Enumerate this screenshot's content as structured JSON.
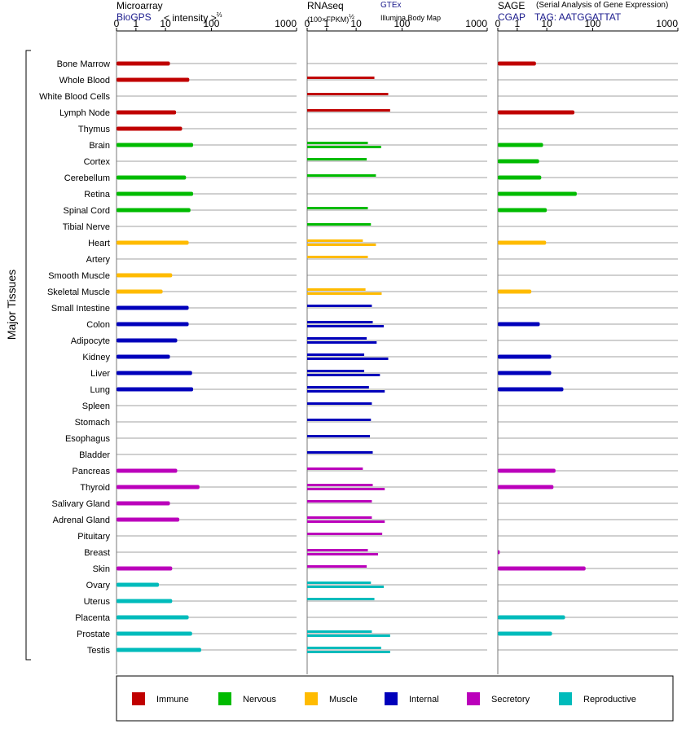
{
  "colors": {
    "Immune": "#c00000",
    "Nervous": "#00bb00",
    "Muscle": "#ffbb00",
    "Internal": "#0000bb",
    "Secretory": "#bb00bb",
    "Reproductive": "#00bbbb",
    "grid": "#999999",
    "axis": "#000000"
  },
  "headers": {
    "microarray": {
      "title": "Microarray",
      "source": "BioGPS",
      "unit_pre": "< intensity >",
      "unit_exp": "⅔"
    },
    "rnaseq": {
      "title": "RNAseq",
      "unit": "(100×FPKM)",
      "unit_exp": "½",
      "source1": "GTEx",
      "source2": "Illumina Body Map"
    },
    "sage": {
      "title": "SAGE",
      "subtitle": "(Serial Analysis of Gene Expression)",
      "source": "CGAP",
      "tag": "TAG: AATGGATTAT"
    }
  },
  "chart_data": {
    "type": "bar",
    "orientation": "horizontal",
    "y_axis_label": "Major Tissues",
    "tick_labels": [
      "0",
      "1",
      "10",
      "100",
      "1000"
    ],
    "xlim": [
      0,
      1000
    ],
    "grid": true,
    "legend_placement": "bottom",
    "legend": [
      "Immune",
      "Nervous",
      "Muscle",
      "Internal",
      "Secretory",
      "Reproductive"
    ],
    "tissues": [
      {
        "name": "Bone Marrow",
        "group": "Immune",
        "microarray": 12.5,
        "rnaseq": [],
        "sage": 4.3
      },
      {
        "name": "Whole Blood",
        "group": "Immune",
        "microarray": 33,
        "rnaseq": [
          25
        ],
        "sage": null
      },
      {
        "name": "White Blood Cells",
        "group": "Immune",
        "microarray": null,
        "rnaseq": [
          50
        ],
        "sage": null
      },
      {
        "name": "Lymph Node",
        "group": "Immune",
        "microarray": 17,
        "rnaseq": [
          55
        ],
        "sage": 40
      },
      {
        "name": "Thymus",
        "group": "Immune",
        "microarray": 23,
        "rnaseq": [],
        "sage": null
      },
      {
        "name": "Brain",
        "group": "Nervous",
        "microarray": 40,
        "rnaseq": [
          18,
          35
        ],
        "sage": 7.5
      },
      {
        "name": "Cortex",
        "group": "Nervous",
        "microarray": null,
        "rnaseq": [
          17
        ],
        "sage": 5.5
      },
      {
        "name": "Cerebellum",
        "group": "Nervous",
        "microarray": 28,
        "rnaseq": [
          27
        ],
        "sage": 6.5
      },
      {
        "name": "Retina",
        "group": "Nervous",
        "microarray": 40,
        "rnaseq": [],
        "sage": 45
      },
      {
        "name": "Spinal Cord",
        "group": "Nervous",
        "microarray": 35,
        "rnaseq": [
          18
        ],
        "sage": 10
      },
      {
        "name": "Tibial Nerve",
        "group": "Nervous",
        "microarray": null,
        "rnaseq": [
          21
        ],
        "sage": null
      },
      {
        "name": "Heart",
        "group": "Muscle",
        "microarray": 32,
        "rnaseq": [
          14,
          27
        ],
        "sage": 9.5
      },
      {
        "name": "Artery",
        "group": "Muscle",
        "microarray": null,
        "rnaseq": [
          18
        ],
        "sage": null
      },
      {
        "name": "Smooth Muscle",
        "group": "Muscle",
        "microarray": 14,
        "rnaseq": [],
        "sage": null
      },
      {
        "name": "Skeletal Muscle",
        "group": "Muscle",
        "microarray": 8,
        "rnaseq": [
          16,
          36
        ],
        "sage": 3
      },
      {
        "name": "Small Intestine",
        "group": "Internal",
        "microarray": 32,
        "rnaseq": [
          22
        ],
        "sage": null
      },
      {
        "name": "Colon",
        "group": "Internal",
        "microarray": 32,
        "rnaseq": [
          23,
          40
        ],
        "sage": 5.8
      },
      {
        "name": "Adipocyte",
        "group": "Internal",
        "microarray": 18,
        "rnaseq": [
          17,
          28
        ],
        "sage": null
      },
      {
        "name": "Kidney",
        "group": "Internal",
        "microarray": 12.5,
        "rnaseq": [
          15,
          50
        ],
        "sage": 12.5
      },
      {
        "name": "Liver",
        "group": "Internal",
        "microarray": 38,
        "rnaseq": [
          15,
          33
        ],
        "sage": 12.5
      },
      {
        "name": "Lung",
        "group": "Internal",
        "microarray": 40,
        "rnaseq": [
          19,
          42
        ],
        "sage": 23
      },
      {
        "name": "Spleen",
        "group": "Internal",
        "microarray": null,
        "rnaseq": [
          22
        ],
        "sage": null
      },
      {
        "name": "Stomach",
        "group": "Internal",
        "microarray": null,
        "rnaseq": [
          21
        ],
        "sage": null
      },
      {
        "name": "Esophagus",
        "group": "Internal",
        "microarray": null,
        "rnaseq": [
          20
        ],
        "sage": null
      },
      {
        "name": "Bladder",
        "group": "Internal",
        "microarray": null,
        "rnaseq": [
          23
        ],
        "sage": null
      },
      {
        "name": "Pancreas",
        "group": "Secretory",
        "microarray": 18,
        "rnaseq": [
          14
        ],
        "sage": 15.5
      },
      {
        "name": "Thyroid",
        "group": "Secretory",
        "microarray": 55,
        "rnaseq": [
          23,
          42
        ],
        "sage": 14
      },
      {
        "name": "Salivary Gland",
        "group": "Secretory",
        "microarray": 12.5,
        "rnaseq": [
          22
        ],
        "sage": null
      },
      {
        "name": "Adrenal Gland",
        "group": "Secretory",
        "microarray": 20,
        "rnaseq": [
          22,
          42
        ],
        "sage": null
      },
      {
        "name": "Pituitary",
        "group": "Secretory",
        "microarray": null,
        "rnaseq": [
          37
        ],
        "sage": null
      },
      {
        "name": "Breast",
        "group": "Secretory",
        "microarray": null,
        "rnaseq": [
          18,
          30
        ],
        "sage": 0.1
      },
      {
        "name": "Skin",
        "group": "Secretory",
        "microarray": 14,
        "rnaseq": [
          17
        ],
        "sage": 70
      },
      {
        "name": "Ovary",
        "group": "Reproductive",
        "microarray": 6,
        "rnaseq": [
          21,
          40
        ],
        "sage": null
      },
      {
        "name": "Uterus",
        "group": "Reproductive",
        "microarray": 14,
        "rnaseq": [
          25
        ],
        "sage": null
      },
      {
        "name": "Placenta",
        "group": "Reproductive",
        "microarray": 32,
        "rnaseq": [],
        "sage": 25
      },
      {
        "name": "Prostate",
        "group": "Reproductive",
        "microarray": 38,
        "rnaseq": [
          22,
          55
        ],
        "sage": 13
      },
      {
        "name": "Testis",
        "group": "Reproductive",
        "microarray": 60,
        "rnaseq": [
          35,
          55
        ],
        "sage": null
      }
    ]
  }
}
